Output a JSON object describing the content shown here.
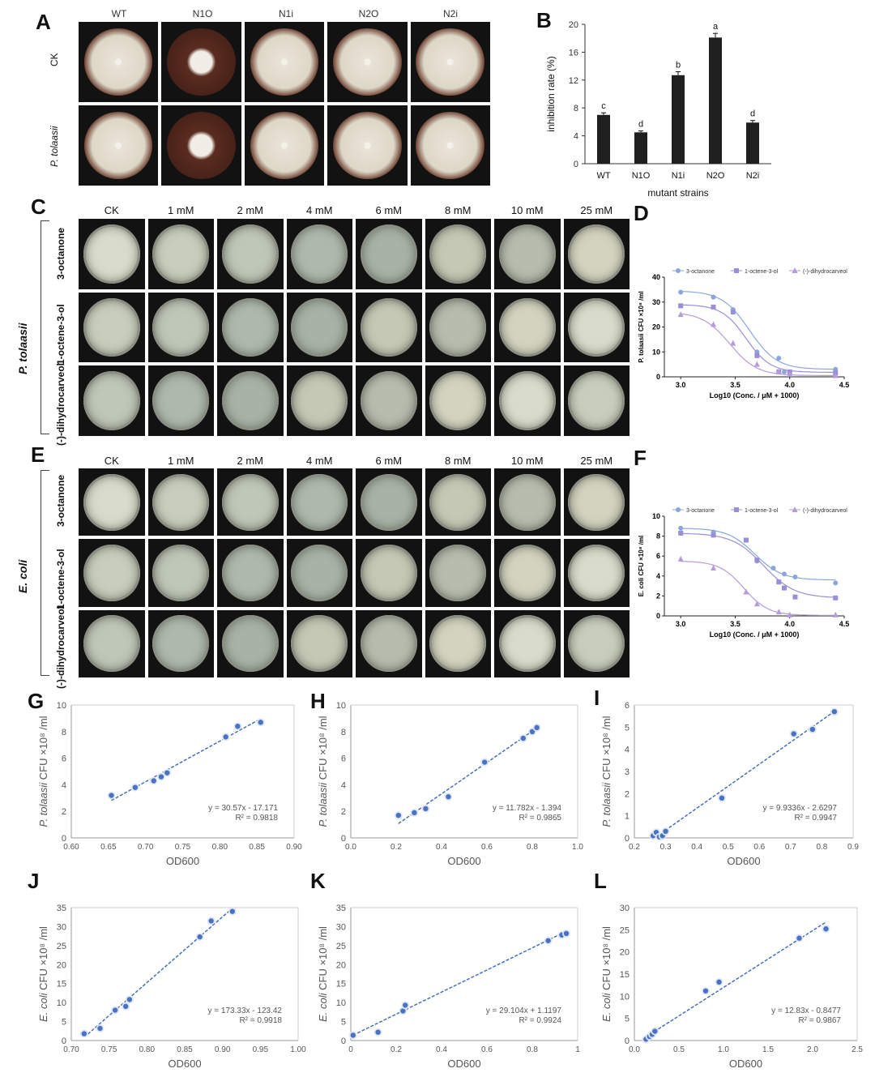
{
  "panels": {
    "A": "A",
    "B": "B",
    "C": "C",
    "D": "D",
    "E": "E",
    "F": "F",
    "G": "G",
    "H": "H",
    "I": "I",
    "J": "J",
    "K": "K",
    "L": "L"
  },
  "panelA": {
    "columns": [
      "WT",
      "N1O",
      "N1i",
      "N2O",
      "N2i"
    ],
    "rows": [
      "CK",
      "P. tolaasii"
    ]
  },
  "plate_headers": [
    "CK",
    "1 mM",
    "2 mM",
    "4 mM",
    "6 mM",
    "8 mM",
    "10 mM",
    "25 mM"
  ],
  "panelC": {
    "organism": "P. tolaasii",
    "rows": [
      "3-octanone",
      "1-octene-3-ol",
      "(-)-dihydrocarveol"
    ]
  },
  "panelE": {
    "organism": "E. coli",
    "rows": [
      "3-octanone",
      "1-octene-3-ol",
      "(-)-dihydrocarveol"
    ]
  },
  "colors": {
    "bar": "#1f1f1f",
    "s1": "#8aa6dc",
    "s2": "#9a8fd6",
    "s3": "#b79ad8",
    "pt": "#4a72c4",
    "line": "#3a68b8"
  },
  "chart_data": [
    {
      "id": "B",
      "type": "bar",
      "categories": [
        "WT",
        "N1O",
        "N1i",
        "N2O",
        "N2i"
      ],
      "values": [
        7.0,
        4.5,
        12.7,
        18.1,
        5.9
      ],
      "errors": [
        0.3,
        0.2,
        0.5,
        0.6,
        0.3
      ],
      "letters": [
        "c",
        "d",
        "b",
        "a",
        "d"
      ],
      "xlabel": "mutant strains",
      "ylabel": "inhibition rate (%)",
      "ylim": [
        0,
        20
      ],
      "yticks": [
        0,
        4,
        8,
        12,
        16,
        20
      ]
    },
    {
      "id": "D",
      "type": "line",
      "xlabel": "Log10 (Conc. / μM + 1000)",
      "ylabel": "P. tolaasii CFU ×10⁸ /ml",
      "xlim": [
        2.85,
        4.5
      ],
      "ylim": [
        0,
        40
      ],
      "xticks": [
        3.0,
        3.5,
        4.0,
        4.5
      ],
      "yticks": [
        0,
        10,
        20,
        30,
        40
      ],
      "legend_position": "top",
      "series": [
        {
          "name": "3-octanone",
          "marker": "circle",
          "x": [
            3.0,
            3.3,
            3.48,
            3.7,
            3.9,
            3.95,
            4.42
          ],
          "y": [
            34,
            32,
            27,
            10,
            7.5,
            2,
            3
          ],
          "fit": {
            "top": 34.5,
            "bottom": 3,
            "x50": 3.63,
            "slope": 8
          }
        },
        {
          "name": "1-octene-3-ol",
          "marker": "square",
          "x": [
            3.0,
            3.3,
            3.48,
            3.7,
            3.9,
            4.0,
            4.42
          ],
          "y": [
            28.5,
            28,
            26,
            8.5,
            2,
            2,
            1.5
          ],
          "fit": {
            "top": 29,
            "bottom": 1.8,
            "x50": 3.6,
            "slope": 9
          }
        },
        {
          "name": "(-)-dihydrocarveol",
          "marker": "triangle",
          "x": [
            3.0,
            3.3,
            3.48,
            3.7,
            3.9,
            4.0,
            4.42
          ],
          "y": [
            25,
            21,
            13.5,
            5,
            2,
            1,
            0.5
          ],
          "fit": {
            "top": 26,
            "bottom": 0.5,
            "x50": 3.45,
            "slope": 8
          }
        }
      ]
    },
    {
      "id": "F",
      "type": "line",
      "xlabel": "Log10 (Conc. / μM + 1000)",
      "ylabel": "E. coli CFU ×10⁸ /ml",
      "xlim": [
        2.85,
        4.5
      ],
      "ylim": [
        0,
        10
      ],
      "xticks": [
        3.0,
        3.5,
        4.0,
        4.5
      ],
      "yticks": [
        0,
        2,
        4,
        6,
        8,
        10
      ],
      "legend_position": "top",
      "series": [
        {
          "name": "3-octanone",
          "marker": "circle",
          "x": [
            3.0,
            3.3,
            3.6,
            3.7,
            3.85,
            3.95,
            4.05,
            4.42
          ],
          "y": [
            8.8,
            8.4,
            7.6,
            5.5,
            4.8,
            4.2,
            3.9,
            3.3
          ],
          "fit": {
            "top": 8.8,
            "bottom": 3.6,
            "x50": 3.68,
            "slope": 8
          }
        },
        {
          "name": "1-octene-3-ol",
          "marker": "square",
          "x": [
            3.0,
            3.3,
            3.6,
            3.7,
            3.9,
            3.95,
            4.05,
            4.42
          ],
          "y": [
            8.3,
            8.1,
            7.6,
            5.6,
            3.4,
            2.8,
            1.9,
            1.8
          ],
          "fit": {
            "top": 8.3,
            "bottom": 1.8,
            "x50": 3.76,
            "slope": 7
          }
        },
        {
          "name": "(-)-dihydrocarveol",
          "marker": "triangle",
          "x": [
            3.0,
            3.3,
            3.6,
            3.7,
            3.9,
            4.0,
            4.42
          ],
          "y": [
            5.7,
            4.8,
            2.4,
            1.2,
            0.4,
            0.1,
            0.1
          ],
          "fit": {
            "top": 5.5,
            "bottom": 0.05,
            "x50": 3.58,
            "slope": 9
          }
        }
      ]
    },
    {
      "id": "G",
      "type": "scatter",
      "organism": "P. tolaasii",
      "ylabel_rest": " CFU ×10⁸ /ml",
      "xlabel": "OD600",
      "xlim": [
        0.6,
        0.9
      ],
      "ylim": [
        0,
        10
      ],
      "xticks": [
        "0.60",
        "0.65",
        "0.70",
        "0.75",
        "0.80",
        "0.85",
        "0.90"
      ],
      "yticks": [
        0,
        2,
        4,
        6,
        8,
        10
      ],
      "x": [
        0.654,
        0.686,
        0.711,
        0.721,
        0.729,
        0.808,
        0.824,
        0.855
      ],
      "y": [
        3.2,
        3.8,
        4.3,
        4.6,
        4.9,
        7.6,
        8.4,
        8.7
      ],
      "slope": 30.57,
      "intercept": -17.171,
      "equation": "y = 30.57x - 17.171",
      "r2": "R² = 0.9818"
    },
    {
      "id": "H",
      "type": "scatter",
      "organism": "P. tolaasii",
      "ylabel_rest": " CFU ×10⁸ /ml",
      "xlabel": "OD600",
      "xlim": [
        0,
        1
      ],
      "ylim": [
        0,
        10
      ],
      "xticks": [
        "0.0",
        "0.2",
        "0.4",
        "0.6",
        "0.8",
        "1.0"
      ],
      "yticks": [
        0,
        2,
        4,
        6,
        8,
        10
      ],
      "x": [
        0.21,
        0.28,
        0.33,
        0.43,
        0.59,
        0.76,
        0.8,
        0.82
      ],
      "y": [
        1.7,
        1.9,
        2.2,
        3.1,
        5.7,
        7.5,
        8.0,
        8.3
      ],
      "slope": 11.782,
      "intercept": -1.394,
      "equation": "y = 11.782x - 1.394",
      "r2": "R² = 0.9865"
    },
    {
      "id": "I",
      "type": "scatter",
      "organism": "P. tolaasii",
      "ylabel_rest": " CFU ×10⁸ /ml",
      "xlabel": "OD600",
      "xlim": [
        0.2,
        0.9
      ],
      "ylim": [
        0,
        6
      ],
      "xticks": [
        "0.2",
        "0.3",
        "0.4",
        "0.5",
        "0.6",
        "0.7",
        "0.8",
        "0.9"
      ],
      "yticks": [
        0,
        1,
        2,
        3,
        4,
        5,
        6
      ],
      "x": [
        0.26,
        0.27,
        0.28,
        0.29,
        0.3,
        0.48,
        0.71,
        0.77,
        0.84
      ],
      "y": [
        0.1,
        0.25,
        0.05,
        0.1,
        0.3,
        1.8,
        4.7,
        4.9,
        5.7
      ],
      "slope": 9.9336,
      "intercept": -2.6297,
      "equation": "y = 9.9336x - 2.6297",
      "r2": "R² = 0.9947"
    },
    {
      "id": "J",
      "type": "scatter",
      "organism": "E. coli",
      "ylabel_rest": " CFU ×10⁸ /ml",
      "xlabel": "OD600",
      "xlim": [
        0.7,
        1.0
      ],
      "ylim": [
        0,
        35
      ],
      "xticks": [
        "0.70",
        "0.75",
        "0.80",
        "0.85",
        "0.90",
        "0.95",
        "1.00"
      ],
      "yticks": [
        0,
        5,
        10,
        15,
        20,
        25,
        30,
        35
      ],
      "x": [
        0.717,
        0.738,
        0.758,
        0.772,
        0.777,
        0.87,
        0.885,
        0.913
      ],
      "y": [
        1.8,
        3.2,
        8.0,
        9.0,
        10.8,
        27.3,
        31.5,
        34.0
      ],
      "slope": 173.33,
      "intercept": -123.42,
      "equation": "y = 173.33x - 123.42",
      "r2": "R² = 0.9918"
    },
    {
      "id": "K",
      "type": "scatter",
      "organism": "E. coli",
      "ylabel_rest": " CFU ×10⁸ /ml",
      "xlabel": "OD600",
      "xlim": [
        0,
        1
      ],
      "ylim": [
        0,
        35
      ],
      "xticks": [
        "0",
        "0.2",
        "0.4",
        "0.6",
        "0.8",
        "1"
      ],
      "yticks": [
        0,
        5,
        10,
        15,
        20,
        25,
        30,
        35
      ],
      "x": [
        0.01,
        0.12,
        0.23,
        0.24,
        0.87,
        0.93,
        0.95
      ],
      "y": [
        1.4,
        2.2,
        7.8,
        9.3,
        26.3,
        27.8,
        28.2
      ],
      "slope": 29.104,
      "intercept": 1.1197,
      "equation": "y = 29.104x + 1.1197",
      "r2": "R² = 0.9924"
    },
    {
      "id": "L",
      "type": "scatter",
      "organism": "E. coli",
      "ylabel_rest": " CFU ×10⁸ /ml",
      "xlabel": "OD600",
      "xlim": [
        0,
        2.5
      ],
      "ylim": [
        0,
        30
      ],
      "xticks": [
        "0.0",
        "0.5",
        "1.0",
        "1.5",
        "2.0",
        "2.5"
      ],
      "yticks": [
        0,
        5,
        10,
        15,
        20,
        25,
        30
      ],
      "x": [
        0.13,
        0.17,
        0.2,
        0.23,
        0.8,
        0.95,
        1.85,
        2.15
      ],
      "y": [
        0.3,
        0.9,
        1.4,
        2.1,
        11.2,
        13.2,
        23.1,
        25.2
      ],
      "slope": 12.83,
      "intercept": -0.8477,
      "equation": "y = 12.83x - 0.8477",
      "r2": "R² = 0.9867"
    }
  ]
}
